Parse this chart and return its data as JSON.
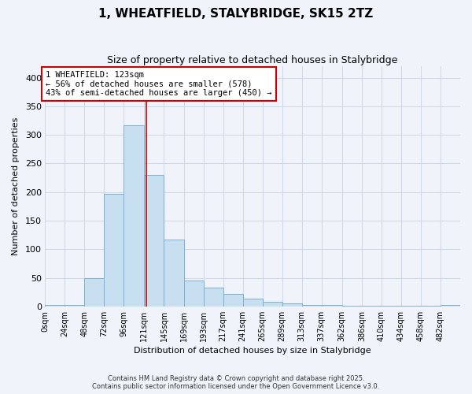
{
  "title": "1, WHEATFIELD, STALYBRIDGE, SK15 2TZ",
  "subtitle": "Size of property relative to detached houses in Stalybridge",
  "xlabel": "Distribution of detached houses by size in Stalybridge",
  "ylabel": "Number of detached properties",
  "bar_color": "#c8dff0",
  "bar_edge_color": "#7ab0d8",
  "background_color": "#f0f4fa",
  "grid_color": "#d0d8e8",
  "bin_edges": [
    0,
    24,
    48,
    72,
    96,
    121,
    145,
    169,
    193,
    217,
    241,
    265,
    289,
    313,
    337,
    362,
    386,
    410,
    434,
    458,
    482,
    506
  ],
  "bin_labels": [
    "0sqm",
    "24sqm",
    "48sqm",
    "72sqm",
    "96sqm",
    "121sqm",
    "145sqm",
    "169sqm",
    "193sqm",
    "217sqm",
    "241sqm",
    "265sqm",
    "289sqm",
    "313sqm",
    "337sqm",
    "362sqm",
    "386sqm",
    "410sqm",
    "434sqm",
    "458sqm",
    "482sqm"
  ],
  "bar_heights": [
    2,
    2,
    50,
    197,
    317,
    230,
    117,
    45,
    33,
    22,
    14,
    8,
    5,
    3,
    2,
    1,
    1,
    1,
    1,
    1,
    2
  ],
  "vline_x": 123,
  "vline_color": "#cc0000",
  "annotation_title": "1 WHEATFIELD: 123sqm",
  "annotation_line1": "← 56% of detached houses are smaller (578)",
  "annotation_line2": "43% of semi-detached houses are larger (450) →",
  "ylim": [
    0,
    420
  ],
  "yticks": [
    0,
    50,
    100,
    150,
    200,
    250,
    300,
    350,
    400
  ],
  "footer1": "Contains HM Land Registry data © Crown copyright and database right 2025.",
  "footer2": "Contains public sector information licensed under the Open Government Licence v3.0."
}
